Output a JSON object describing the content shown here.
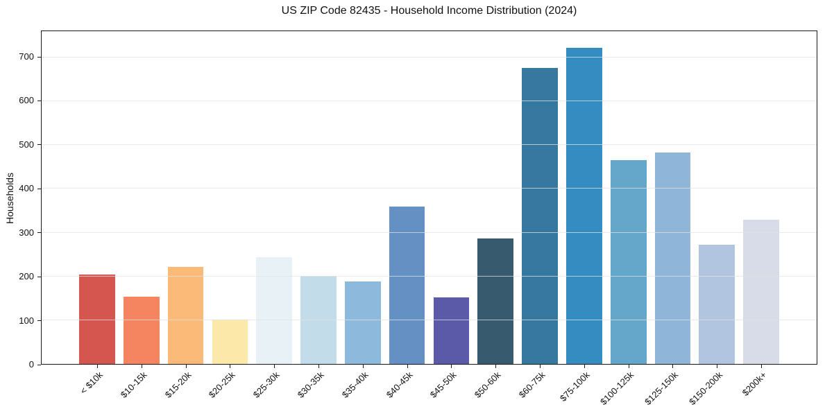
{
  "chart_data": {
    "type": "bar",
    "title": "US ZIP Code 82435 - Household Income Distribution (2024)",
    "xlabel": "",
    "ylabel": "Households",
    "categories": [
      "< $10k",
      "$10-15k",
      "$15-20k",
      "$20-25k",
      "$25-30k",
      "$30-35k",
      "$35-40k",
      "$40-45k",
      "$45-50k",
      "$50-60k",
      "$60-75k",
      "$75-100k",
      "$100-125k",
      "$125-150k",
      "$150-200k",
      "$200k+"
    ],
    "values": [
      205,
      153,
      222,
      101,
      244,
      201,
      188,
      360,
      152,
      287,
      676,
      722,
      465,
      483,
      273,
      330
    ],
    "bar_colors": [
      "#d5564e",
      "#f58460",
      "#fcba79",
      "#fce9a9",
      "#e7f1f6",
      "#c3dcea",
      "#8db9dc",
      "#6590c4",
      "#5a5aa8",
      "#375a6e",
      "#36789f",
      "#358cc0",
      "#65a7ca",
      "#8fb5d8",
      "#b2c5e0",
      "#d8dbe8"
    ],
    "yticks": [
      0,
      100,
      200,
      300,
      400,
      500,
      600,
      700
    ],
    "ylim": [
      0,
      760
    ],
    "grid": "horizontal",
    "grid_color": "#e5e5e5",
    "legend": "none",
    "background_color": "#ffffff",
    "spine_color": "#161616",
    "x_tick_rotation_deg": 45
  }
}
